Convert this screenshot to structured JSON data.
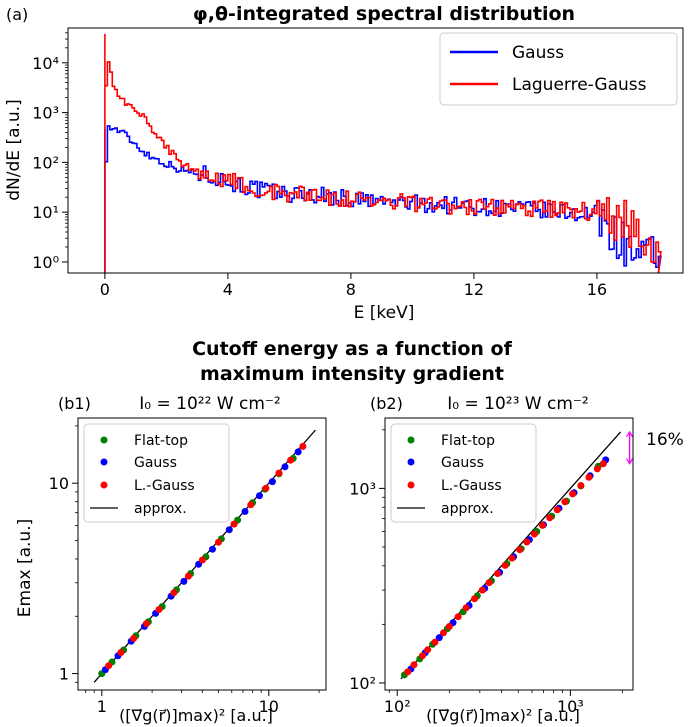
{
  "figure": {
    "suptitle_line1": "Cutoff energy as a function of",
    "suptitle_line2": "maximum intensity gradient"
  },
  "chart_data": [
    {
      "id": "a",
      "type": "line",
      "panel_label": "(a)",
      "title": "φ,θ-integrated spectral distribution",
      "xlabel": "E [keV]",
      "ylabel": "dN/dE [a.u.]",
      "xlim": [
        -1.2,
        18.8
      ],
      "ylim": [
        0.6,
        50000
      ],
      "yscale": "log",
      "xticks": [
        0,
        4,
        8,
        12,
        16
      ],
      "yticks": [
        1,
        10,
        100,
        1000,
        10000
      ],
      "yticklabels": [
        "10⁰",
        "10¹",
        "10²",
        "10³",
        "10⁴"
      ],
      "legend_position": "upper right",
      "series": [
        {
          "name": "Gauss",
          "color": "#0000ff",
          "points": [
            [
              0,
              0.6
            ],
            [
              0.05,
              470
            ],
            [
              0.15,
              500
            ],
            [
              0.3,
              470
            ],
            [
              0.5,
              430
            ],
            [
              0.8,
              300
            ],
            [
              1.1,
              200
            ],
            [
              1.5,
              130
            ],
            [
              2,
              95
            ],
            [
              2.5,
              70
            ],
            [
              3,
              60
            ],
            [
              3.5,
              55
            ],
            [
              4,
              40
            ],
            [
              5,
              28
            ],
            [
              6,
              23
            ],
            [
              7,
              22
            ],
            [
              8,
              18
            ],
            [
              9,
              16
            ],
            [
              10,
              15
            ],
            [
              11,
              14
            ],
            [
              12,
              13
            ],
            [
              13,
              12
            ],
            [
              14,
              11
            ],
            [
              15,
              10
            ],
            [
              16,
              9
            ],
            [
              16.5,
              4
            ],
            [
              17,
              2
            ],
            [
              17.5,
              1
            ],
            [
              18,
              1.5
            ]
          ]
        },
        {
          "name": "Laguerre-Gauss",
          "color": "#ff0000",
          "points": [
            [
              0,
              0.6
            ],
            [
              0.05,
              38000
            ],
            [
              0.1,
              15000
            ],
            [
              0.2,
              6000
            ],
            [
              0.3,
              3500
            ],
            [
              0.5,
              2200
            ],
            [
              0.8,
              1400
            ],
            [
              1.1,
              1000
            ],
            [
              1.5,
              500
            ],
            [
              2,
              200
            ],
            [
              2.5,
              100
            ],
            [
              3,
              70
            ],
            [
              3.5,
              55
            ],
            [
              4,
              45
            ],
            [
              5,
              30
            ],
            [
              6,
              24
            ],
            [
              7,
              22
            ],
            [
              8,
              18
            ],
            [
              9,
              16
            ],
            [
              10,
              15
            ],
            [
              11,
              14
            ],
            [
              12,
              13
            ],
            [
              13,
              13
            ],
            [
              14,
              12
            ],
            [
              15,
              11
            ],
            [
              16,
              10
            ],
            [
              17,
              6
            ],
            [
              17.5,
              3
            ],
            [
              18,
              1
            ]
          ]
        }
      ]
    },
    {
      "id": "b1",
      "type": "scatter",
      "panel_label": "(b1)",
      "title": "I₀ = 10²² W cm⁻²",
      "xlabel": "([∇⃗g(r⃗)]max)² [a.u.]",
      "ylabel": "Emax [a.u.]",
      "xscale": "log",
      "yscale": "log",
      "xlim": [
        0.72,
        22
      ],
      "ylim": [
        0.82,
        22
      ],
      "xticks": [
        1,
        10
      ],
      "yticks": [
        1,
        10
      ],
      "legend_position": "upper left",
      "series": [
        {
          "name": "Flat-top",
          "color": "#008000",
          "x": [
            1.0,
            1.15,
            1.35,
            1.6,
            1.9,
            2.3,
            2.8,
            3.4,
            4.2,
            5.2,
            6.5,
            8.0,
            9.5,
            11.5,
            14.0
          ],
          "y": [
            1.0,
            1.15,
            1.33,
            1.58,
            1.87,
            2.25,
            2.75,
            3.35,
            4.1,
            5.1,
            6.4,
            7.9,
            9.3,
            11.2,
            13.5
          ]
        },
        {
          "name": "Gauss",
          "color": "#0000ff",
          "x": [
            1.05,
            1.25,
            1.5,
            1.8,
            2.1,
            2.6,
            3.1,
            3.8,
            4.6,
            5.8,
            7.2,
            8.8,
            10.5,
            12.5,
            15.0
          ],
          "y": [
            1.05,
            1.24,
            1.48,
            1.77,
            2.07,
            2.55,
            3.05,
            3.75,
            4.5,
            5.7,
            7.1,
            8.6,
            10.2,
            12.2,
            14.6
          ]
        },
        {
          "name": "L.-Gauss",
          "color": "#ff0000",
          "x": [
            1.1,
            1.3,
            1.55,
            1.85,
            2.2,
            2.7,
            3.3,
            4.0,
            5.0,
            6.2,
            7.8,
            9.6,
            11.5,
            13.5,
            16.0
          ],
          "y": [
            1.1,
            1.29,
            1.53,
            1.83,
            2.17,
            2.66,
            3.25,
            3.95,
            4.9,
            6.1,
            7.7,
            9.4,
            11.3,
            13.2,
            15.6
          ]
        },
        {
          "name": "approx.",
          "color": "#000000",
          "x": [
            0.9,
            19
          ],
          "y": [
            0.9,
            19
          ]
        }
      ]
    },
    {
      "id": "b2",
      "type": "scatter",
      "panel_label": "(b2)",
      "title": "I₀ = 10²³ W cm⁻²",
      "xlabel": "([∇⃗g(r⃗)]max)² [a.u.]",
      "xscale": "log",
      "yscale": "log",
      "xlim": [
        85,
        2300
      ],
      "ylim": [
        92,
        2300
      ],
      "xticks": [
        100,
        1000
      ],
      "yticks": [
        100,
        1000
      ],
      "xticklabels": [
        "10²",
        "10³"
      ],
      "yticklabels": [
        "10²",
        "10³"
      ],
      "legend_position": "upper left",
      "annotation": "16%",
      "annotation_color": "#ff00ff",
      "series": [
        {
          "name": "Flat-top",
          "color": "#008000",
          "x": [
            110,
            135,
            160,
            195,
            240,
            290,
            350,
            430,
            520,
            640,
            780,
            950,
            1150,
            1450
          ],
          "y": [
            110,
            133,
            158,
            190,
            232,
            280,
            335,
            410,
            490,
            600,
            720,
            860,
            1030,
            1300
          ]
        },
        {
          "name": "Gauss",
          "color": "#0000ff",
          "x": [
            120,
            145,
            175,
            210,
            260,
            320,
            390,
            470,
            580,
            700,
            860,
            1050,
            1300,
            1600
          ],
          "y": [
            118,
            143,
            171,
            204,
            250,
            306,
            370,
            445,
            545,
            650,
            790,
            950,
            1160,
            1400
          ]
        },
        {
          "name": "L.-Gauss",
          "color": "#ff0000",
          "x": [
            115,
            125,
            140,
            150,
            165,
            185,
            200,
            225,
            250,
            280,
            310,
            340,
            380,
            420,
            460,
            510,
            560,
            620,
            690,
            760,
            840,
            930,
            1030,
            1150,
            1280,
            1430,
            1550
          ],
          "y": [
            114,
            124,
            138,
            148,
            162,
            181,
            195,
            219,
            243,
            271,
            300,
            328,
            365,
            402,
            438,
            484,
            530,
            583,
            645,
            706,
            776,
            853,
            937,
            1035,
            1140,
            1260,
            1340
          ]
        },
        {
          "name": "approx.",
          "color": "#000000",
          "x": [
            105,
            1950
          ],
          "y": [
            105,
            1950
          ]
        }
      ]
    }
  ]
}
